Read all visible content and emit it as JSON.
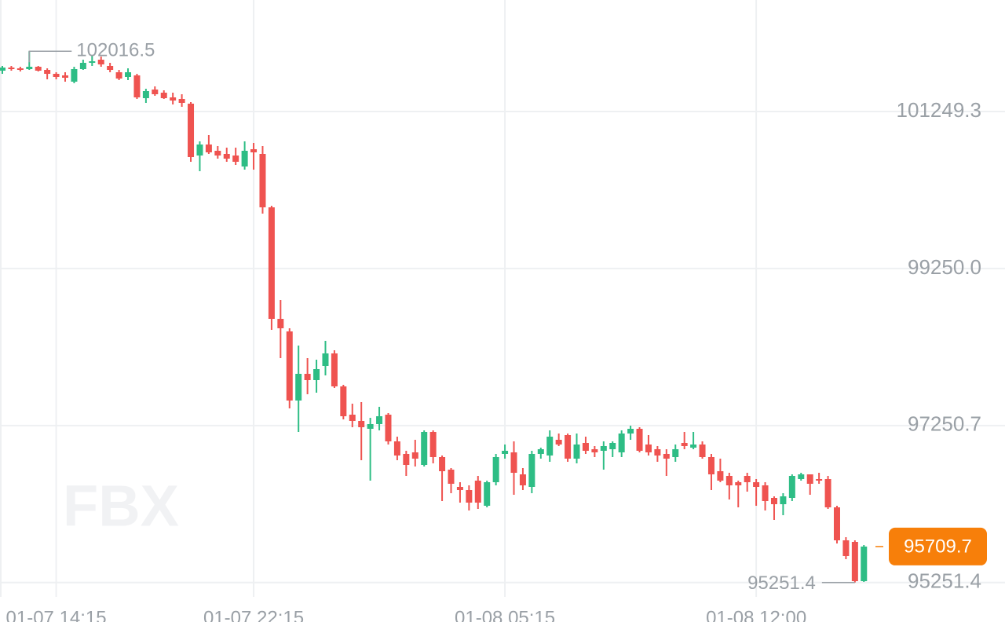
{
  "chart_data": {
    "type": "candlestick",
    "watermark": "FBX",
    "up_color": "#2ebd85",
    "down_color": "#ef5350",
    "price_tag_color": "#f77f0a",
    "grid": true,
    "categories": [
      null,
      null,
      null,
      null,
      null,
      null,
      "01-07 14:15",
      null,
      null,
      null,
      null,
      null,
      null,
      null,
      null,
      null,
      null,
      null,
      null,
      null,
      null,
      null,
      null,
      null,
      null,
      null,
      null,
      null,
      "01-07 22:15",
      null,
      null,
      null,
      null,
      null,
      null,
      null,
      null,
      null,
      null,
      null,
      null,
      null,
      null,
      null,
      null,
      null,
      null,
      null,
      null,
      null,
      null,
      null,
      null,
      null,
      null,
      null,
      "01-08 05:15",
      null,
      null,
      null,
      null,
      null,
      null,
      null,
      null,
      null,
      null,
      null,
      null,
      null,
      null,
      null,
      null,
      null,
      null,
      null,
      null,
      null,
      null,
      null,
      null,
      null,
      null,
      null,
      "01-08 12:00",
      null,
      null,
      null,
      null,
      null,
      null,
      null,
      null,
      null,
      null,
      null,
      null
    ],
    "open": [
      101769,
      101809,
      101799,
      101789,
      101819,
      101779,
      101729,
      101709,
      101629,
      101789,
      101869,
      101909,
      101829,
      101749,
      101689,
      101709,
      101419,
      101529,
      101489,
      101429,
      101409,
      101349,
      100689,
      100829,
      100749,
      100709,
      100689,
      100549,
      100769,
      100709,
      100029,
      98609,
      98449,
      97569,
      97909,
      97829,
      98009,
      98169,
      97749,
      97389,
      97309,
      97209,
      97269,
      97389,
      97049,
      96889,
      96909,
      96749,
      97169,
      96849,
      96689,
      96469,
      96429,
      96549,
      96229,
      96529,
      96889,
      96909,
      96629,
      96469,
      96889,
      96869,
      97069,
      97129,
      96829,
      97029,
      96949,
      96929,
      96949,
      96909,
      97149,
      97209,
      97009,
      96949,
      96889,
      96849,
      97029,
      96969,
      97009,
      96849,
      96669,
      96609,
      96529,
      96609,
      96529,
      96489,
      96329,
      96249,
      96329,
      96569,
      96629,
      96569,
      96569,
      96209,
      95789,
      95769,
      95269
    ],
    "high": [
      101829,
      101829,
      101819,
      102016.5,
      101829,
      101799,
      101749,
      101749,
      101819,
      101909,
      101969,
      101949,
      101869,
      101779,
      101799,
      101729,
      101539,
      101569,
      101519,
      101489,
      101469,
      101369,
      100869,
      100949,
      100809,
      100789,
      100789,
      100869,
      100849,
      100809,
      100049,
      98849,
      98489,
      98269,
      98109,
      98089,
      98329,
      98209,
      97769,
      97529,
      97549,
      97349,
      97489,
      97409,
      97109,
      96929,
      97069,
      97189,
      97189,
      96869,
      96709,
      96529,
      96489,
      96609,
      96549,
      96889,
      97009,
      97049,
      96709,
      96929,
      96969,
      97189,
      97149,
      97149,
      97149,
      97109,
      96989,
      97049,
      97049,
      97189,
      97249,
      97229,
      97129,
      96989,
      96949,
      97009,
      97169,
      97169,
      97049,
      96889,
      96829,
      96649,
      96549,
      96649,
      96569,
      96529,
      96349,
      96389,
      96629,
      96649,
      96629,
      96649,
      96609,
      96229,
      95829,
      95789,
      95729
    ],
    "low": [
      101729,
      101769,
      101759,
      101779,
      101759,
      101659,
      101659,
      101629,
      101609,
      101779,
      101829,
      101819,
      101749,
      101649,
      101649,
      101409,
      101359,
      101449,
      101409,
      101339,
      101309,
      100609,
      100489,
      100709,
      100649,
      100609,
      100569,
      100509,
      100509,
      99949,
      98469,
      98109,
      97469,
      97169,
      97649,
      97669,
      97889,
      97729,
      97329,
      97229,
      96809,
      96549,
      97189,
      97009,
      96809,
      96609,
      96729,
      96729,
      96769,
      96289,
      96389,
      96269,
      96169,
      96189,
      96209,
      96489,
      96829,
      96369,
      96429,
      96389,
      96829,
      96789,
      96989,
      96789,
      96769,
      96889,
      96849,
      96689,
      96849,
      96849,
      97069,
      96909,
      96869,
      96789,
      96609,
      96789,
      96949,
      96949,
      96829,
      96429,
      96529,
      96309,
      96209,
      96409,
      96229,
      96169,
      96049,
      96109,
      96289,
      96549,
      96369,
      96509,
      96189,
      95749,
      95549,
      95251.4,
      95259
    ],
    "close": [
      101809,
      101789,
      101789,
      101819,
      101769,
      101729,
      101689,
      101679,
      101789,
      101869,
      101889,
      101849,
      101779,
      101669,
      101749,
      101429,
      101509,
      101469,
      101419,
      101389,
      101359,
      100669,
      100829,
      100729,
      100689,
      100649,
      100609,
      100749,
      100729,
      100029,
      98609,
      98489,
      97569,
      97909,
      97829,
      97969,
      98169,
      97749,
      97369,
      97309,
      97229,
      97269,
      97369,
      97049,
      96869,
      96749,
      96829,
      97169,
      96849,
      96669,
      96509,
      96429,
      96269,
      96269,
      96529,
      96849,
      96929,
      96649,
      96489,
      96889,
      96949,
      97109,
      97009,
      96829,
      97009,
      96929,
      96909,
      96989,
      97029,
      97149,
      97209,
      96929,
      96909,
      96869,
      96829,
      96949,
      96989,
      97009,
      96849,
      96629,
      96549,
      96489,
      96489,
      96529,
      96469,
      96289,
      96249,
      96349,
      96609,
      96629,
      96509,
      96549,
      96209,
      95789,
      95589,
      95269,
      95709.7
    ],
    "ylim": [
      94969,
      102669
    ],
    "yticks": [
      95251.4,
      97250.7,
      {
        "value": 99250,
        "label": "99250.0"
      },
      101249.3
    ]
  }
}
